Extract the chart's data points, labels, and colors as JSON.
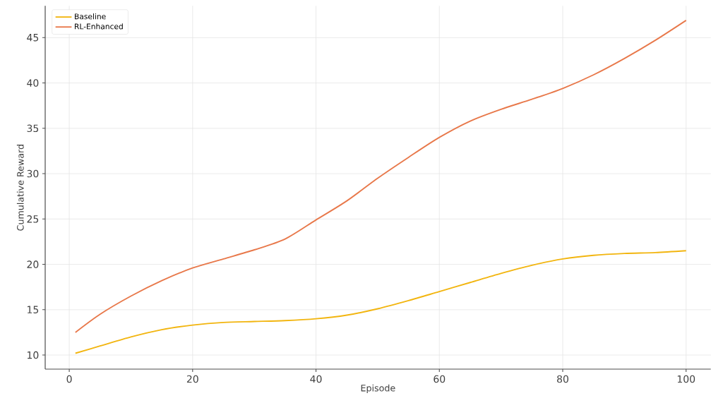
{
  "chart_data": {
    "type": "line",
    "xlabel": "Episode",
    "ylabel": "Cumulative Reward",
    "x": [
      1,
      5,
      10,
      15,
      20,
      25,
      30,
      35,
      40,
      45,
      50,
      55,
      60,
      65,
      70,
      75,
      80,
      85,
      90,
      95,
      100
    ],
    "series": [
      {
        "name": "Baseline",
        "color": "#f2b50f",
        "values": [
          10.2,
          11.0,
          12.0,
          12.8,
          13.3,
          13.6,
          13.7,
          13.8,
          14.0,
          14.4,
          15.1,
          16.0,
          17.0,
          18.0,
          19.0,
          19.9,
          20.6,
          21.0,
          21.2,
          21.3,
          21.5
        ]
      },
      {
        "name": "RL-Enhanced",
        "color": "#e8784a",
        "values": [
          12.5,
          14.5,
          16.5,
          18.2,
          19.6,
          20.6,
          21.6,
          22.8,
          24.9,
          27.0,
          29.5,
          31.8,
          34.0,
          35.8,
          37.1,
          38.2,
          39.4,
          40.9,
          42.7,
          44.7,
          46.9
        ]
      }
    ],
    "xlim": [
      -3.9,
      104
    ],
    "ylim": [
      8.45,
      48.5
    ],
    "xticks": [
      0,
      20,
      40,
      60,
      80,
      100
    ],
    "yticks": [
      10,
      15,
      20,
      25,
      30,
      35,
      40,
      45
    ],
    "grid": true,
    "legend": "top left",
    "line_style": "solid",
    "marker": "none"
  }
}
